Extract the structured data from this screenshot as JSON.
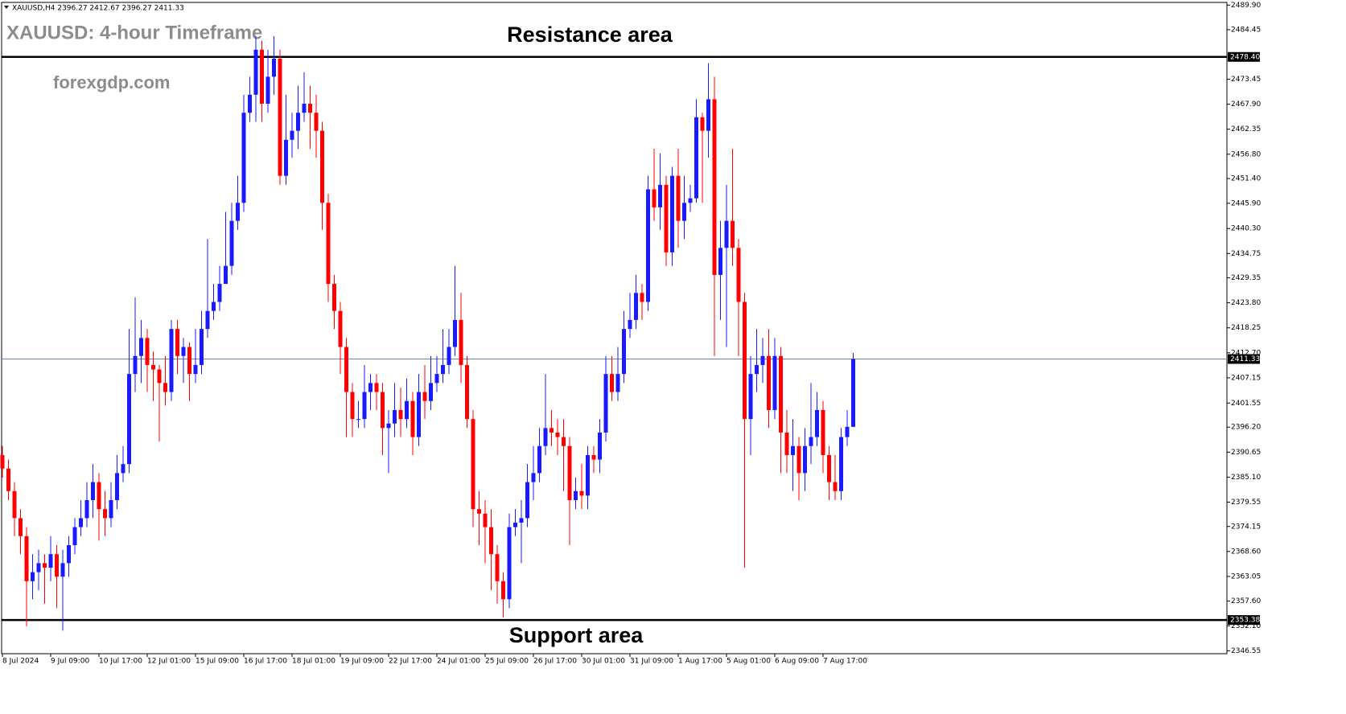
{
  "chart_data": {
    "type": "candlestick",
    "header": "XAUUSD,H4  2396.27 2412.67 2396.27 2411.33",
    "title": "XAUUSD: 4-hour Timeframe",
    "watermark": "forexgdp.com",
    "annotations": [
      "Resistance area",
      "Support area"
    ],
    "up_color": "#1a1aff",
    "down_color": "#ff0000",
    "categories": [
      "8 Jul 2024",
      null,
      null,
      null,
      null,
      null,
      null,
      null,
      "9 Jul 09:00",
      null,
      null,
      null,
      null,
      null,
      null,
      null,
      "10 Jul 17:00",
      null,
      null,
      null,
      null,
      null,
      null,
      null,
      "12 Jul 01:00",
      null,
      null,
      null,
      null,
      null,
      null,
      null,
      "15 Jul 09:00",
      null,
      null,
      null,
      null,
      null,
      null,
      null,
      "16 Jul 17:00",
      null,
      null,
      null,
      null,
      null,
      null,
      null,
      "18 Jul 01:00",
      null,
      null,
      null,
      null,
      null,
      null,
      null,
      "19 Jul 09:00",
      null,
      null,
      null,
      null,
      null,
      null,
      null,
      "22 Jul 17:00",
      null,
      null,
      null,
      null,
      null,
      null,
      null,
      "24 Jul 01:00",
      null,
      null,
      null,
      null,
      null,
      null,
      null,
      "25 Jul 09:00",
      null,
      null,
      null,
      null,
      null,
      null,
      null,
      "26 Jul 17:00",
      null,
      null,
      null,
      null,
      null,
      null,
      null,
      "30 Jul 01:00",
      null,
      null,
      null,
      null,
      null,
      null,
      null,
      "31 Jul 09:00",
      null,
      null,
      null,
      null,
      null,
      null,
      null,
      "1 Aug 17:00",
      null,
      null,
      null,
      null,
      null,
      null,
      null,
      "5 Aug 01:00",
      null,
      null,
      null,
      null,
      null,
      null,
      null,
      "6 Aug 09:00",
      null,
      null,
      null,
      null,
      null,
      null,
      null,
      "7 Aug 17:00",
      null,
      null,
      null,
      null,
      null
    ],
    "open": [
      2390,
      2387,
      2382,
      2376,
      2372,
      2362,
      2364,
      2366,
      2365,
      2368,
      2363,
      2366,
      2370,
      2374,
      2376,
      2380,
      2384,
      2378,
      2376,
      2380,
      2386,
      2388,
      2408,
      2412,
      2416,
      2410,
      2409,
      2406,
      2404,
      2418,
      2412,
      2414,
      2408,
      2410,
      2418,
      2422,
      2424,
      2428,
      2432,
      2442,
      2446,
      2466,
      2470,
      2480,
      2468,
      2474,
      2478,
      2452,
      2460,
      2462,
      2466,
      2468,
      2466,
      2462,
      2446,
      2428,
      2422,
      2414,
      2404,
      2398,
      2398,
      2404,
      2406,
      2404,
      2396,
      2397,
      2400,
      2398,
      2402,
      2394,
      2404,
      2402,
      2406,
      2408,
      2410,
      2414,
      2420,
      2410,
      2398,
      2378,
      2377,
      2374,
      2368,
      2362,
      2358,
      2374,
      2375,
      2376,
      2384,
      2386,
      2392,
      2396,
      2395,
      2394,
      2392,
      2380,
      2382,
      2381,
      2390,
      2389,
      2395,
      2408,
      2404,
      2408,
      2418,
      2420,
      2426,
      2424,
      2449,
      2445,
      2450,
      2435,
      2452,
      2442,
      2446,
      2447,
      2465,
      2462,
      2469,
      2430,
      2436,
      2442,
      2436,
      2424,
      2398,
      2408,
      2410,
      2412,
      2400,
      2412,
      2395,
      2390,
      2392,
      2386,
      2392,
      2394,
      2400,
      2390,
      2384,
      2382,
      2394,
      2396.27
    ],
    "high": [
      2392,
      2389,
      2384,
      2378,
      2374,
      2368,
      2369,
      2368,
      2372,
      2370,
      2369,
      2372,
      2376,
      2380,
      2384,
      2388,
      2386,
      2382,
      2384,
      2390,
      2392,
      2418,
      2425,
      2420,
      2418,
      2413,
      2410,
      2412,
      2420,
      2420,
      2416,
      2415,
      2418,
      2422,
      2438,
      2428,
      2432,
      2444,
      2446,
      2452,
      2470,
      2474,
      2483,
      2482,
      2480,
      2483,
      2480,
      2470,
      2466,
      2472,
      2475,
      2472,
      2470,
      2464,
      2448,
      2430,
      2424,
      2416,
      2406,
      2402,
      2410,
      2408,
      2408,
      2406,
      2400,
      2406,
      2405,
      2407,
      2404,
      2408,
      2410,
      2412,
      2412,
      2418,
      2418,
      2432,
      2426,
      2412,
      2400,
      2382,
      2380,
      2378,
      2370,
      2364,
      2377,
      2378,
      2380,
      2388,
      2392,
      2396,
      2408,
      2400,
      2398,
      2398,
      2394,
      2385,
      2388,
      2392,
      2392,
      2398,
      2412,
      2412,
      2414,
      2422,
      2426,
      2430,
      2428,
      2452,
      2458,
      2457,
      2452,
      2454,
      2458,
      2452,
      2450,
      2469,
      2466,
      2477,
      2474,
      2442,
      2450,
      2458,
      2438,
      2426,
      2412,
      2418,
      2416,
      2418,
      2416,
      2414,
      2400,
      2398,
      2394,
      2396,
      2406,
      2404,
      2402,
      2392,
      2390,
      2396,
      2400,
      2412.67
    ],
    "low": [
      2385,
      2380,
      2372,
      2368,
      2352,
      2358,
      2360,
      2357,
      2362,
      2356,
      2351,
      2363,
      2368,
      2372,
      2374,
      2376,
      2371,
      2372,
      2374,
      2378,
      2384,
      2386,
      2404,
      2406,
      2404,
      2402,
      2393,
      2401,
      2402,
      2408,
      2406,
      2402,
      2406,
      2408,
      2416,
      2420,
      2422,
      2428,
      2430,
      2440,
      2444,
      2464,
      2464,
      2464,
      2466,
      2470,
      2450,
      2450,
      2456,
      2458,
      2464,
      2458,
      2456,
      2440,
      2424,
      2418,
      2408,
      2394,
      2394,
      2396,
      2396,
      2400,
      2400,
      2390,
      2386,
      2394,
      2394,
      2396,
      2390,
      2392,
      2398,
      2400,
      2404,
      2406,
      2408,
      2412,
      2406,
      2396,
      2374,
      2370,
      2366,
      2360,
      2357,
      2354,
      2356,
      2372,
      2366,
      2374,
      2380,
      2384,
      2390,
      2392,
      2390,
      2382,
      2370,
      2378,
      2378,
      2378,
      2386,
      2386,
      2393,
      2402,
      2402,
      2406,
      2416,
      2418,
      2420,
      2422,
      2442,
      2440,
      2432,
      2432,
      2436,
      2438,
      2444,
      2446,
      2446,
      2456,
      2412,
      2420,
      2414,
      2432,
      2412,
      2365,
      2390,
      2404,
      2406,
      2396,
      2398,
      2386,
      2386,
      2382,
      2380,
      2382,
      2388,
      2392,
      2386,
      2380,
      2380,
      2380,
      2392,
      2396.27
    ],
    "close": [
      2387,
      2382,
      2376,
      2372,
      2362,
      2364,
      2366,
      2365,
      2368,
      2363,
      2366,
      2370,
      2374,
      2376,
      2380,
      2384,
      2378,
      2376,
      2380,
      2386,
      2388,
      2408,
      2412,
      2416,
      2410,
      2409,
      2406,
      2404,
      2418,
      2412,
      2414,
      2408,
      2410,
      2418,
      2422,
      2424,
      2428,
      2432,
      2442,
      2446,
      2466,
      2470,
      2480,
      2468,
      2474,
      2478,
      2452,
      2460,
      2462,
      2466,
      2468,
      2466,
      2462,
      2446,
      2428,
      2422,
      2414,
      2404,
      2398,
      2398,
      2404,
      2406,
      2404,
      2396,
      2397,
      2400,
      2398,
      2402,
      2394,
      2404,
      2402,
      2406,
      2408,
      2410,
      2414,
      2420,
      2410,
      2398,
      2378,
      2377,
      2374,
      2368,
      2362,
      2358,
      2374,
      2375,
      2376,
      2384,
      2386,
      2392,
      2396,
      2395,
      2394,
      2392,
      2380,
      2382,
      2381,
      2390,
      2389,
      2395,
      2408,
      2404,
      2408,
      2418,
      2420,
      2426,
      2424,
      2449,
      2445,
      2450,
      2435,
      2452,
      2442,
      2446,
      2447,
      2465,
      2462,
      2469,
      2430,
      2436,
      2442,
      2436,
      2424,
      2398,
      2408,
      2410,
      2412,
      2400,
      2412,
      2395,
      2390,
      2392,
      2386,
      2392,
      2394,
      2400,
      2390,
      2384,
      2382,
      2394,
      2396.27,
      2411.33
    ],
    "ylim": [
      2345.9,
      2490.5
    ],
    "yticks": [
      {
        "value": 2489.9,
        "label": "2489.90"
      },
      {
        "value": 2484.45,
        "label": "2484.45"
      },
      {
        "value": 2473.45,
        "label": "2473.45"
      },
      {
        "value": 2467.9,
        "label": "2467.90"
      },
      {
        "value": 2462.35,
        "label": "2462.35"
      },
      {
        "value": 2456.8,
        "label": "2456.80"
      },
      {
        "value": 2451.4,
        "label": "2451.40"
      },
      {
        "value": 2445.9,
        "label": "2445.90"
      },
      {
        "value": 2440.3,
        "label": "2440.30"
      },
      {
        "value": 2434.75,
        "label": "2434.75"
      },
      {
        "value": 2429.35,
        "label": "2429.35"
      },
      {
        "value": 2423.8,
        "label": "2423.80"
      },
      {
        "value": 2418.25,
        "label": "2418.25"
      },
      {
        "value": 2412.7,
        "label": "2412.70"
      },
      {
        "value": 2407.15,
        "label": "2407.15"
      },
      {
        "value": 2401.55,
        "label": "2401.55"
      },
      {
        "value": 2396.2,
        "label": "2396.20"
      },
      {
        "value": 2390.65,
        "label": "2390.65"
      },
      {
        "value": 2385.1,
        "label": "2385.10"
      },
      {
        "value": 2379.55,
        "label": "2379.55"
      },
      {
        "value": 2374.15,
        "label": "2374.15"
      },
      {
        "value": 2368.6,
        "label": "2368.60"
      },
      {
        "value": 2363.05,
        "label": "2363.05"
      },
      {
        "value": 2357.6,
        "label": "2357.60"
      },
      {
        "value": 2352.1,
        "label": "2352.10"
      },
      {
        "value": 2346.55,
        "label": "2346.55"
      }
    ],
    "levels": [
      {
        "value": 2478.4,
        "label": "2478.40"
      },
      {
        "value": 2411.33,
        "label": "2411.33"
      },
      {
        "value": 2353.38,
        "label": "2353.38"
      }
    ]
  }
}
